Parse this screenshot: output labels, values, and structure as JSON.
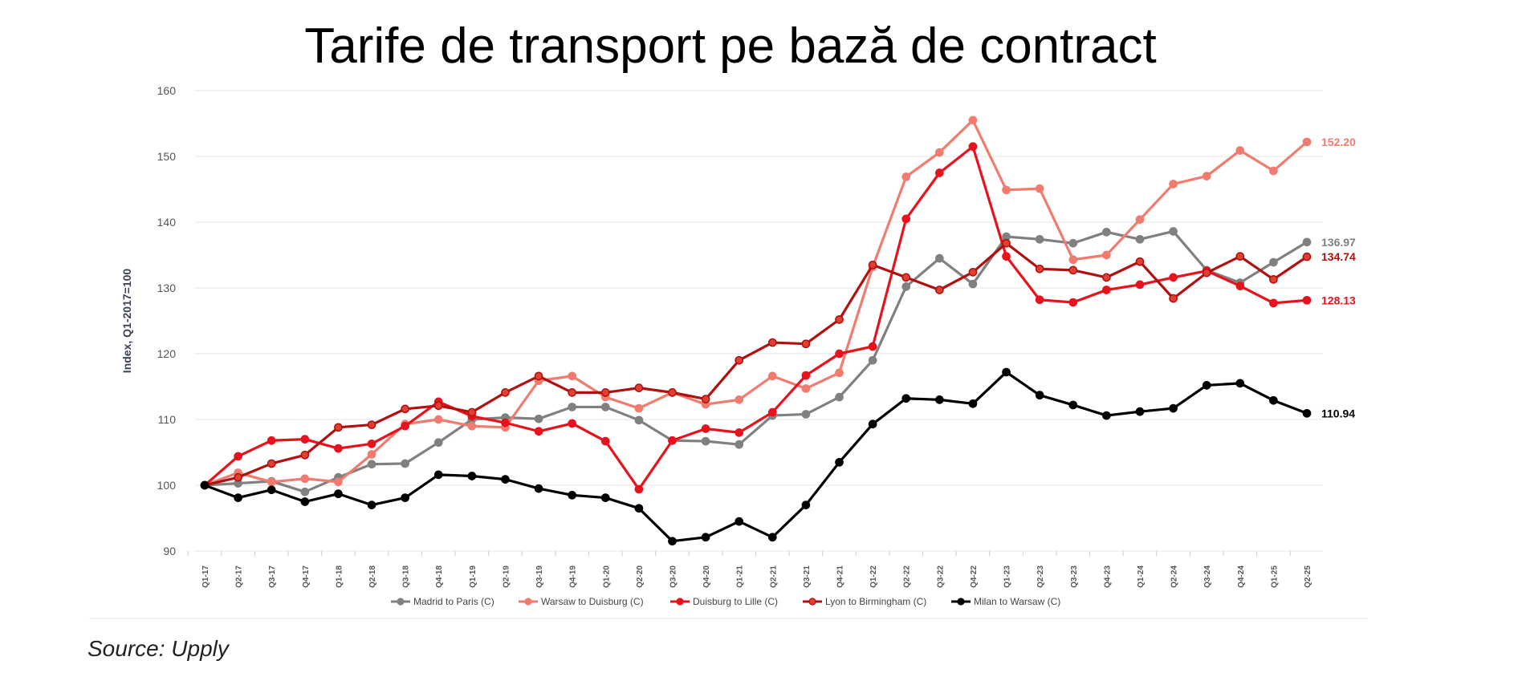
{
  "chart_data": {
    "type": "line",
    "title": "Tarife de transport pe bază de contract",
    "ylabel": "Index, Q1-2017=100",
    "xlabel": "",
    "ylim": [
      90,
      160
    ],
    "yticks": [
      90,
      100,
      110,
      120,
      130,
      140,
      150,
      160
    ],
    "grid": true,
    "legend_position": "bottom",
    "categories": [
      "Q1-17",
      "Q2-17",
      "Q3-17",
      "Q4-17",
      "Q1-18",
      "Q2-18",
      "Q3-18",
      "Q4-18",
      "Q1-19",
      "Q2-19",
      "Q3-19",
      "Q4-19",
      "Q1-20",
      "Q2-20",
      "Q3-20",
      "Q4-20",
      "Q1-21",
      "Q2-21",
      "Q3-21",
      "Q4-21",
      "Q1-22",
      "Q2-22",
      "Q3-22",
      "Q4-22",
      "Q1-23",
      "Q2-23",
      "Q3-23",
      "Q4-23",
      "Q1-24",
      "Q2-24",
      "Q3-24",
      "Q4-24",
      "Q1-25",
      "Q2-25"
    ],
    "series": [
      {
        "name": "Madrid to Paris (C)",
        "color": "#808080",
        "marker_fill": "#808080",
        "end_label": "136.97",
        "values": [
          100,
          100.3,
          100.6,
          99,
          101.2,
          103.2,
          103.3,
          106.5,
          110,
          110.3,
          110.1,
          111.9,
          111.9,
          109.9,
          106.8,
          106.7,
          106.2,
          110.6,
          110.8,
          113.4,
          119,
          130.2,
          134.5,
          130.6,
          137.8,
          137.4,
          136.8,
          138.5,
          137.4,
          138.6,
          132.7,
          130.8,
          133.9,
          136.97
        ]
      },
      {
        "name": "Warsaw to Duisburg (C)",
        "color": "#f07b6e",
        "marker_fill": "#f07b6e",
        "end_label": "152.20",
        "values": [
          100,
          101.9,
          100.5,
          101,
          100.5,
          104.7,
          109.3,
          110,
          109,
          108.8,
          115.9,
          116.6,
          113.4,
          111.7,
          114.1,
          112.3,
          113,
          116.6,
          114.7,
          117.1,
          133.2,
          146.9,
          150.6,
          155.5,
          144.9,
          145.1,
          134.3,
          135,
          140.4,
          145.8,
          147,
          150.9,
          147.8,
          152.2
        ]
      },
      {
        "name": "Duisburg to Lille (C)",
        "color": "#e8121c",
        "marker_fill": "#e8121c",
        "end_label": "128.13",
        "values": [
          100,
          104.4,
          106.8,
          107,
          105.6,
          106.3,
          109,
          112.7,
          110.5,
          109.5,
          108.2,
          109.4,
          106.7,
          99.4,
          106.8,
          108.6,
          108,
          111.1,
          116.7,
          120,
          121.1,
          140.5,
          147.5,
          151.5,
          134.8,
          128.2,
          127.8,
          129.7,
          130.5,
          131.6,
          132.6,
          130.3,
          127.7,
          128.13
        ]
      },
      {
        "name": "Lyon to Birmingham (C)",
        "color": "#b0100f",
        "marker_fill": "#e04030",
        "end_label": "134.74",
        "values": [
          100,
          101.2,
          103.3,
          104.6,
          108.8,
          109.2,
          111.6,
          112.1,
          111.1,
          114.1,
          116.6,
          114.1,
          114.1,
          114.8,
          114.1,
          113.1,
          119,
          121.7,
          121.5,
          125.2,
          133.5,
          131.6,
          129.7,
          132.4,
          136.8,
          132.9,
          132.7,
          131.6,
          134,
          128.4,
          132.3,
          134.8,
          131.3,
          134.74
        ]
      },
      {
        "name": "Milan to Warsaw (C)",
        "color": "#000000",
        "marker_fill": "#000000",
        "end_label": "110.94",
        "values": [
          100,
          98.1,
          99.3,
          97.5,
          98.7,
          97,
          98.1,
          101.6,
          101.4,
          100.9,
          99.5,
          98.5,
          98.1,
          96.5,
          91.5,
          92.1,
          94.5,
          92.1,
          97,
          103.5,
          109.3,
          113.2,
          113,
          112.4,
          117.2,
          113.7,
          112.2,
          110.6,
          111.2,
          111.7,
          115.2,
          115.5,
          112.9,
          110.94
        ]
      }
    ]
  },
  "source": "Source: Upply"
}
